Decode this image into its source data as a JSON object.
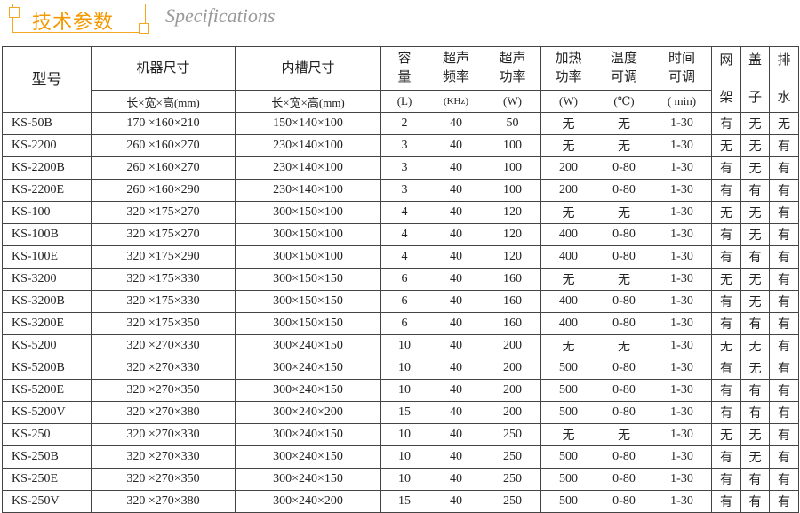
{
  "title": {
    "cn": "技术参数",
    "en": "Specifications"
  },
  "colors": {
    "accent": "#f39800",
    "subtitle": "#999999",
    "border": "#444444"
  },
  "header": {
    "model": "型号",
    "machine_size": "机器尺寸",
    "machine_size_unit": "长×宽×高(mm)",
    "tank_size": "内槽尺寸",
    "tank_size_unit": "长×宽×高(mm)",
    "capacity": [
      "容",
      "量"
    ],
    "capacity_unit": "(L)",
    "freq": [
      "超声",
      "频率"
    ],
    "freq_unit": "(KHz)",
    "power": [
      "超声",
      "功率"
    ],
    "power_unit": "(W)",
    "heat": [
      "加热",
      "功率"
    ],
    "heat_unit": "(W)",
    "temp": [
      "温度",
      "可调"
    ],
    "temp_unit": "(℃)",
    "time": [
      "时间",
      "可调"
    ],
    "time_unit": "( min)",
    "rack": [
      "网",
      "架"
    ],
    "lid": [
      "盖",
      "子"
    ],
    "drain": [
      "排",
      "水"
    ]
  },
  "rows": [
    [
      "KS-50B",
      "170 ×160×210",
      "150×140×100",
      "2",
      "40",
      "50",
      "无",
      "无",
      "1-30",
      "有",
      "无",
      "无"
    ],
    [
      "KS-2200",
      "260 ×160×270",
      "230×140×100",
      "3",
      "40",
      "100",
      "无",
      "无",
      "1-30",
      "无",
      "无",
      "有"
    ],
    [
      "KS-2200B",
      "260 ×160×270",
      "230×140×100",
      "3",
      "40",
      "100",
      "200",
      "0-80",
      "1-30",
      "有",
      "无",
      "有"
    ],
    [
      "KS-2200E",
      "260 ×160×290",
      "230×140×100",
      "3",
      "40",
      "100",
      "200",
      "0-80",
      "1-30",
      "有",
      "有",
      "有"
    ],
    [
      "KS-100",
      "320 ×175×270",
      "300×150×100",
      "4",
      "40",
      "120",
      "无",
      "无",
      "1-30",
      "无",
      "无",
      "有"
    ],
    [
      "KS-100B",
      "320 ×175×270",
      "300×150×100",
      "4",
      "40",
      "120",
      "400",
      "0-80",
      "1-30",
      "有",
      "无",
      "有"
    ],
    [
      "KS-100E",
      "320 ×175×290",
      "300×150×100",
      "4",
      "40",
      "120",
      "400",
      "0-80",
      "1-30",
      "有",
      "有",
      "有"
    ],
    [
      "KS-3200",
      "320 ×175×330",
      "300×150×150",
      "6",
      "40",
      "160",
      "无",
      "无",
      "1-30",
      "无",
      "无",
      "有"
    ],
    [
      "KS-3200B",
      "320 ×175×330",
      "300×150×150",
      "6",
      "40",
      "160",
      "400",
      "0-80",
      "1-30",
      "有",
      "无",
      "有"
    ],
    [
      "KS-3200E",
      "320 ×175×350",
      "300×150×150",
      "6",
      "40",
      "160",
      "400",
      "0-80",
      "1-30",
      "有",
      "有",
      "有"
    ],
    [
      "KS-5200",
      "320 ×270×330",
      "300×240×150",
      "10",
      "40",
      "200",
      "无",
      "无",
      "1-30",
      "无",
      "无",
      "有"
    ],
    [
      "KS-5200B",
      "320 ×270×330",
      "300×240×150",
      "10",
      "40",
      "200",
      "500",
      "0-80",
      "1-30",
      "有",
      "无",
      "有"
    ],
    [
      "KS-5200E",
      "320 ×270×350",
      "300×240×150",
      "10",
      "40",
      "200",
      "500",
      "0-80",
      "1-30",
      "有",
      "有",
      "有"
    ],
    [
      "KS-5200V",
      "320 ×270×380",
      "300×240×200",
      "15",
      "40",
      "200",
      "500",
      "0-80",
      "1-30",
      "有",
      "有",
      "有"
    ],
    [
      "KS-250",
      "320 ×270×330",
      "300×240×150",
      "10",
      "40",
      "250",
      "无",
      "无",
      "1-30",
      "无",
      "无",
      "有"
    ],
    [
      "KS-250B",
      "320 ×270×330",
      "300×240×150",
      "10",
      "40",
      "250",
      "500",
      "0-80",
      "1-30",
      "有",
      "无",
      "有"
    ],
    [
      "KS-250E",
      "320 ×270×350",
      "300×240×150",
      "10",
      "40",
      "250",
      "500",
      "0-80",
      "1-30",
      "有",
      "有",
      "有"
    ],
    [
      "KS-250V",
      "320 ×270×380",
      "300×240×200",
      "15",
      "40",
      "250",
      "500",
      "0-80",
      "1-30",
      "有",
      "有",
      "有"
    ]
  ]
}
